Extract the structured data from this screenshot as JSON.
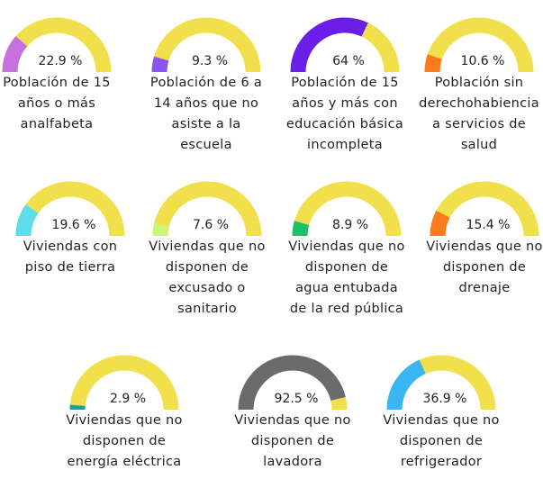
{
  "chart_data": [
    {
      "type": "gauge",
      "title": "Población de 15 años o más analfabeta",
      "values": [
        22.9
      ],
      "value_labels": [
        "22.9 %"
      ],
      "color": "#c86fe0",
      "track_color": "#f1df4c",
      "ylim": [
        0,
        100
      ]
    },
    {
      "type": "gauge",
      "title": "Población de 6 a 14 años que no asiste a la escuela",
      "values": [
        9.3
      ],
      "value_labels": [
        "9.3 %"
      ],
      "color": "#8a55f0",
      "track_color": "#f1df4c",
      "ylim": [
        0,
        100
      ]
    },
    {
      "type": "gauge",
      "title": "Población de 15 años y más con educación básica incompleta",
      "values": [
        64
      ],
      "value_labels": [
        "64 %"
      ],
      "color": "#6a1ee8",
      "track_color": "#f1df4c",
      "ylim": [
        0,
        100
      ]
    },
    {
      "type": "gauge",
      "title": "Población sin derechohabiencia a servicios de salud",
      "values": [
        10.6
      ],
      "value_labels": [
        "10.6 %"
      ],
      "color": "#fb7a1e",
      "track_color": "#f1df4c",
      "ylim": [
        0,
        100
      ]
    },
    {
      "type": "gauge",
      "title": "Viviendas con piso de tierra",
      "values": [
        19.6
      ],
      "value_labels": [
        "19.6 %"
      ],
      "color": "#5cdde8",
      "track_color": "#f1df4c",
      "ylim": [
        0,
        100
      ]
    },
    {
      "type": "gauge",
      "title": "Viviendas que no disponen de excusado o sanitario",
      "values": [
        7.6
      ],
      "value_labels": [
        "7.6 %"
      ],
      "color": "#cdf57a",
      "track_color": "#f1df4c",
      "ylim": [
        0,
        100
      ]
    },
    {
      "type": "gauge",
      "title": "Viviendas que no disponen de agua entubada de la red pública",
      "values": [
        8.9
      ],
      "value_labels": [
        "8.9 %"
      ],
      "color": "#1cbf6a",
      "track_color": "#f1df4c",
      "ylim": [
        0,
        100
      ]
    },
    {
      "type": "gauge",
      "title": "Viviendas que no disponen de drenaje",
      "values": [
        15.4
      ],
      "value_labels": [
        "15.4 %"
      ],
      "color": "#fb7a1e",
      "track_color": "#f1df4c",
      "ylim": [
        0,
        100
      ]
    },
    {
      "type": "gauge",
      "title": "Viviendas que no disponen de energía eléctrica",
      "values": [
        2.9
      ],
      "value_labels": [
        "2.9 %"
      ],
      "color": "#1aa0a0",
      "track_color": "#f1df4c",
      "ylim": [
        0,
        100
      ]
    },
    {
      "type": "gauge",
      "title": "Viviendas que no disponen de lavadora",
      "values": [
        92.5
      ],
      "value_labels": [
        "92.5 %"
      ],
      "color": "#6b6b6b",
      "track_color": "#f1df4c",
      "ylim": [
        0,
        100
      ]
    },
    {
      "type": "gauge",
      "title": "Viviendas que no disponen de refrigerador",
      "values": [
        36.9
      ],
      "value_labels": [
        "36.9 %"
      ],
      "color": "#3bb6f5",
      "track_color": "#f1df4c",
      "ylim": [
        0,
        100
      ]
    }
  ]
}
